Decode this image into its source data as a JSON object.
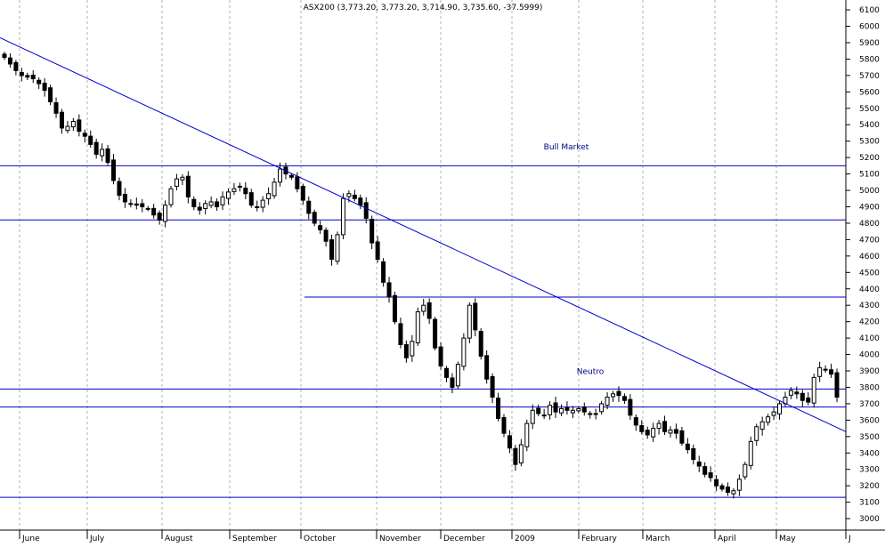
{
  "chart_data": {
    "type": "candlestick",
    "title": "ASX200 (3,773.20, 3,773.20, 3,714.90, 3,735.60, -37.5999)",
    "ylim": [
      2930,
      6160
    ],
    "y_ticks": [
      3000,
      3100,
      3200,
      3300,
      3400,
      3500,
      3600,
      3700,
      3800,
      3900,
      4000,
      4100,
      4200,
      4300,
      4400,
      4500,
      4600,
      4700,
      4800,
      4900,
      5000,
      5100,
      5200,
      5300,
      5400,
      5500,
      5600,
      5700,
      5800,
      5900,
      6000,
      6100
    ],
    "months": [
      "June",
      "July",
      "August",
      "September",
      "October",
      "November",
      "December",
      "2009",
      "February",
      "March",
      "April",
      "May",
      "J"
    ],
    "grid": true,
    "annotations": [
      {
        "text": "Bull Market",
        "x": 78,
        "y": 5250
      },
      {
        "text": "Neutro",
        "x": 80,
        "y": 3880
      }
    ],
    "levels": [
      5150,
      4820,
      4350,
      3790,
      3680,
      3130
    ],
    "trendline": {
      "x": [
        0,
        120
      ],
      "y": [
        5930,
        3530
      ]
    },
    "closes": [
      5810,
      5770,
      5730,
      5700,
      5690,
      5680,
      5650,
      5610,
      5540,
      5470,
      5380,
      5390,
      5420,
      5360,
      5330,
      5280,
      5220,
      5250,
      5170,
      5060,
      4970,
      4930,
      4920,
      4910,
      4900,
      4890,
      4850,
      4820,
      4910,
      5010,
      5070,
      5080,
      4960,
      4900,
      4880,
      4920,
      4930,
      4900,
      4960,
      4990,
      5010,
      5020,
      4980,
      4910,
      4900,
      4940,
      4980,
      5050,
      5130,
      5100,
      5080,
      5010,
      4940,
      4860,
      4800,
      4760,
      4690,
      4580,
      4730,
      4950,
      4980,
      4950,
      4910,
      4830,
      4680,
      4580,
      4440,
      4350,
      4200,
      4060,
      3980,
      4080,
      4260,
      4300,
      4220,
      4040,
      3930,
      3860,
      3800,
      3940,
      4100,
      4300,
      4150,
      3990,
      3850,
      3740,
      3610,
      3520,
      3430,
      3330,
      3450,
      3580,
      3660,
      3640,
      3630,
      3690,
      3650,
      3670,
      3660,
      3660,
      3670,
      3650,
      3640,
      3640,
      3700,
      3740,
      3760,
      3750,
      3720,
      3630,
      3570,
      3530,
      3510,
      3550,
      3580,
      3530,
      3540,
      3520,
      3460,
      3420,
      3360,
      3320,
      3270,
      3250,
      3200,
      3180,
      3160,
      3170,
      3240,
      3330,
      3470,
      3560,
      3590,
      3620,
      3650,
      3700,
      3740,
      3780,
      3760,
      3720,
      3710,
      3860,
      3920,
      3910,
      3880,
      3740
    ]
  }
}
